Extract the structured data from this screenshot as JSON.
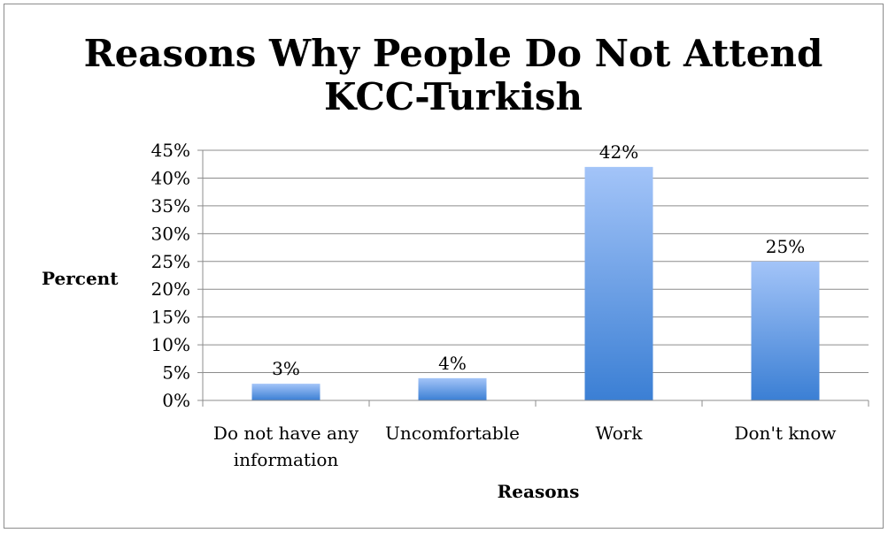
{
  "chart_data": {
    "type": "bar",
    "title_lines": [
      "Reasons Why People Do Not Attend",
      "KCC-Turkish"
    ],
    "categories": [
      [
        "Do not have any",
        "information"
      ],
      [
        "Uncomfortable"
      ],
      [
        "Work"
      ],
      [
        "Don't know"
      ]
    ],
    "values": [
      3,
      4,
      42,
      25
    ],
    "data_labels": [
      "3%",
      "4%",
      "42%",
      "25%"
    ],
    "xlabel": "Reasons",
    "ylabel": "Percent",
    "ylim": [
      0,
      45
    ],
    "yticks": [
      0,
      5,
      10,
      15,
      20,
      25,
      30,
      35,
      40,
      45
    ],
    "ytick_labels": [
      "0%",
      "5%",
      "10%",
      "15%",
      "20%",
      "25%",
      "30%",
      "35%",
      "40%",
      "45%"
    ],
    "grid": true,
    "legend": "none",
    "colors": {
      "bar_top": "#a3c4f8",
      "bar_bottom": "#3b7fd4",
      "gridline": "#8c8c8c",
      "axis": "#8c8c8c",
      "frame": "#8c8c8c"
    }
  }
}
